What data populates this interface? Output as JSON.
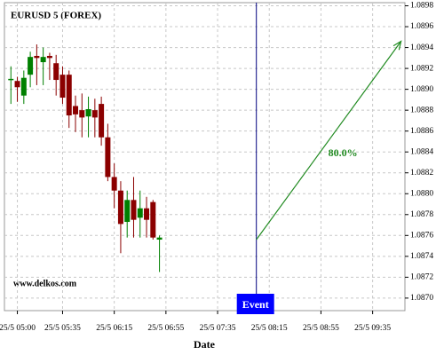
{
  "chart_data": {
    "type": "candlestick",
    "title": "EURUSD 5 (FOREX)",
    "watermark": "www.delkos.com",
    "x_label": "Date",
    "x": [
      "25/5 04:55",
      "25/5 05:00",
      "25/5 05:05",
      "25/5 05:10",
      "25/5 05:15",
      "25/5 05:20",
      "25/5 05:25",
      "25/5 05:30",
      "25/5 05:35",
      "25/5 05:40",
      "25/5 05:45",
      "25/5 05:50",
      "25/5 05:55",
      "25/5 06:00",
      "25/5 06:05",
      "25/5 06:10",
      "25/5 06:15",
      "25/5 06:20",
      "25/5 06:25",
      "25/5 06:30",
      "25/5 06:35",
      "25/5 06:40",
      "25/5 06:45",
      "25/5 06:50"
    ],
    "open": [
      1.0891,
      1.08908,
      1.08894,
      1.08914,
      1.08932,
      1.08926,
      1.08932,
      1.08925,
      1.08914,
      1.08914,
      1.08884,
      1.0888,
      1.08874,
      1.0888,
      1.08886,
      1.08854,
      1.08816,
      1.08803,
      1.08773,
      1.08794,
      1.08777,
      1.08786,
      1.08792,
      1.08756
    ],
    "high": [
      1.08922,
      1.08912,
      1.08918,
      1.08936,
      1.08943,
      1.0894,
      1.08935,
      1.08933,
      1.08922,
      1.08918,
      1.08894,
      1.08896,
      1.08893,
      1.08891,
      1.08893,
      1.08867,
      1.08829,
      1.08812,
      1.08803,
      1.08816,
      1.08803,
      1.08797,
      1.08794,
      1.0876
    ],
    "low": [
      1.08886,
      1.08888,
      1.08886,
      1.08902,
      1.08904,
      1.08904,
      1.08909,
      1.08894,
      1.08886,
      1.08863,
      1.08859,
      1.08854,
      1.08854,
      1.08854,
      1.08846,
      1.08812,
      1.08786,
      1.08743,
      1.08758,
      1.08758,
      1.08758,
      1.08758,
      1.08756,
      1.08725
    ],
    "close": [
      1.0891,
      1.08902,
      1.08911,
      1.08931,
      1.0893,
      1.08931,
      1.0893,
      1.08909,
      1.08892,
      1.08875,
      1.08876,
      1.08873,
      1.08881,
      1.08873,
      1.08854,
      1.08816,
      1.08803,
      1.08771,
      1.08794,
      1.08775,
      1.08786,
      1.08775,
      1.08758,
      1.08758
    ],
    "up_color": "#008000",
    "down_color": "#8b0000",
    "xlim": [
      "25/5 04:50",
      "25/5 10:00"
    ],
    "xticks": [
      "25/5 05:00",
      "25/5 05:35",
      "25/5 06:15",
      "25/5 06:55",
      "25/5 07:35",
      "25/5 08:15",
      "25/5 08:55",
      "25/5 09:35"
    ],
    "ylim": [
      1.08688,
      1.08983
    ],
    "yticks": [
      {
        "value": 1.087,
        "label": "1.0870"
      },
      1.0872,
      1.0874,
      1.0876,
      1.0878,
      {
        "value": 1.088,
        "label": "1.0880"
      },
      1.0882,
      1.0884,
      1.0886,
      1.0888,
      {
        "value": 1.089,
        "label": "1.0890"
      },
      1.0892,
      1.0894,
      1.0896,
      1.0898
    ],
    "grid": true,
    "event": {
      "x": "25/5 08:05",
      "label": "Event"
    },
    "forecast": {
      "x": [
        "25/5 08:05",
        "25/5 09:57"
      ],
      "y": [
        1.08756,
        1.08946
      ],
      "label": "80.0%",
      "color": "#228b22"
    }
  }
}
